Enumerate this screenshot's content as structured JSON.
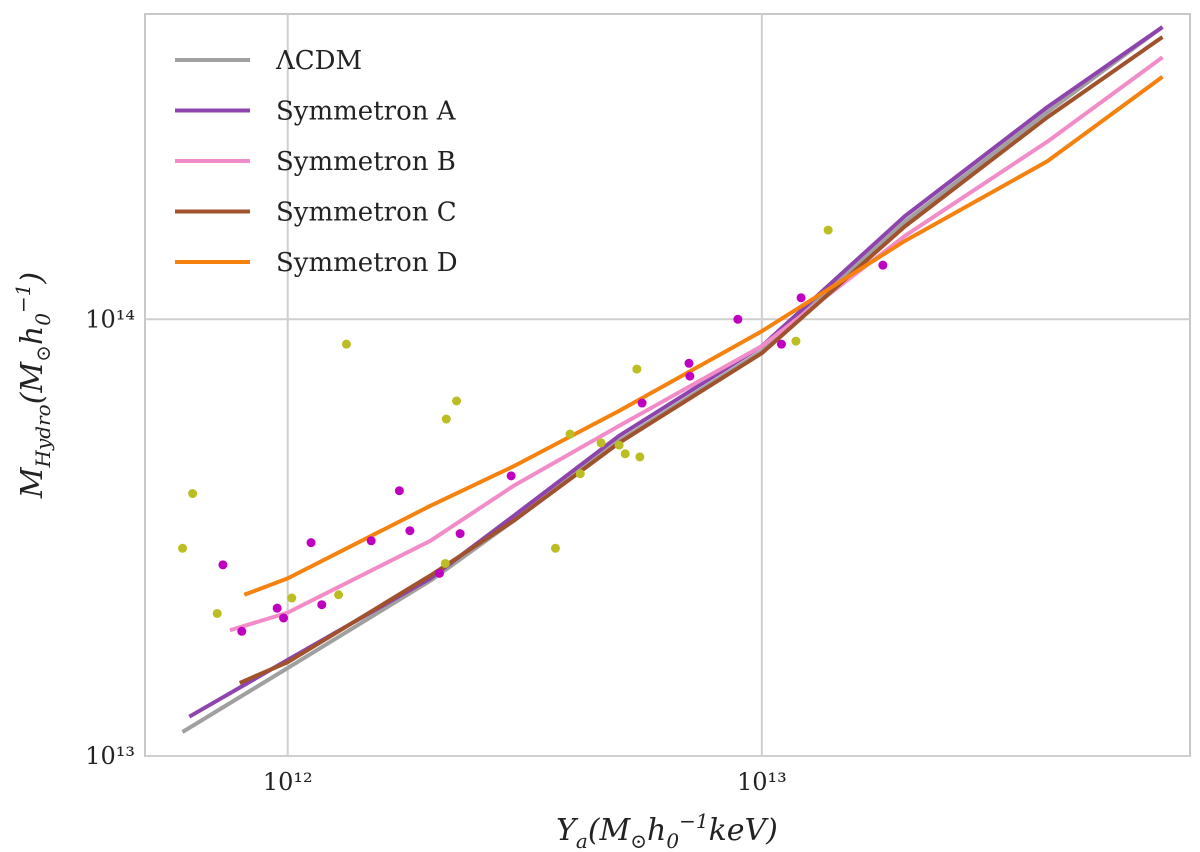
{
  "chart_data": {
    "type": "line",
    "xlabel": [
      {
        "text": "Y"
      },
      {
        "text": "a",
        "shift": "sub"
      },
      {
        "text": "(M"
      },
      {
        "text": "⊙",
        "shift": "sub"
      },
      {
        "text": "h"
      },
      {
        "text": "0",
        "shift": "sub"
      },
      {
        "text": "−1",
        "shift": "super"
      },
      {
        "text": "keV)"
      }
    ],
    "ylabel": [
      {
        "text": "M"
      },
      {
        "text": "Hydro",
        "shift": "sub"
      },
      {
        "text": "(M"
      },
      {
        "text": "⊙",
        "shift": "sub"
      },
      {
        "text": "h"
      },
      {
        "text": "0",
        "shift": "sub"
      },
      {
        "text": "−1",
        "shift": "super"
      },
      {
        "text": ")"
      }
    ],
    "xscale": "log",
    "yscale": "log",
    "xlim": [
      500000000000.0,
      80000000000000.0
    ],
    "ylim": [
      10000000000000.0,
      500000000000000.0
    ],
    "xticks": [
      {
        "value": 1000000000000.0,
        "label": "10¹²"
      },
      {
        "value": 10000000000000.0,
        "label": "10¹³"
      }
    ],
    "yticks": [
      {
        "value": 10000000000000.0,
        "label": "10¹³"
      },
      {
        "value": 100000000000000.0,
        "label": "10¹⁴"
      }
    ],
    "grid": true,
    "legend": "upper left",
    "series": [
      {
        "name": "ΛCDM",
        "color": "#a0a0a0",
        "x": [
          600000000000.0,
          1000000000000.0,
          2000000000000.0,
          3000000000000.0,
          5000000000000.0,
          10000000000000.0,
          20000000000000.0,
          40000000000000.0,
          70000000000000.0
        ],
        "values": [
          11350000000000.0,
          15900000000000.0,
          25200000000000.0,
          34600000000000.0,
          52700000000000.0,
          84500000000000.0,
          167000000000000.0,
          298000000000000.0,
          467000000000000.0
        ]
      },
      {
        "name": "Symmetron A",
        "color": "#8e44ad",
        "x": [
          620000000000.0,
          1000000000000.0,
          2000000000000.0,
          3000000000000.0,
          5000000000000.0,
          10000000000000.0,
          20000000000000.0,
          40000000000000.0,
          70000000000000.0
        ],
        "values": [
          12300000000000.0,
          16600000000000.0,
          25500000000000.0,
          35500000000000.0,
          54100000000000.0,
          86800000000000.0,
          172000000000000.0,
          306000000000000.0,
          467000000000000.0
        ]
      },
      {
        "name": "Symmetron B",
        "color": "#f28cc8",
        "x": [
          755000000000.0,
          1000000000000.0,
          2000000000000.0,
          3000000000000.0,
          5000000000000.0,
          10000000000000.0,
          20000000000000.0,
          40000000000000.0,
          70000000000000.0
        ],
        "values": [
          19400000000000.0,
          21300000000000.0,
          31100000000000.0,
          41600000000000.0,
          57000000000000.0,
          86800000000000.0,
          155000000000000.0,
          255000000000000.0,
          398000000000000.0
        ]
      },
      {
        "name": "Symmetron C",
        "color": "#a0522d",
        "x": [
          792000000000.0,
          1000000000000.0,
          2000000000000.0,
          3000000000000.0,
          5000000000000.0,
          10000000000000.0,
          20000000000000.0,
          40000000000000.0,
          70000000000000.0
        ],
        "values": [
          14700000000000.0,
          16400000000000.0,
          25900000000000.0,
          34600000000000.0,
          52100000000000.0,
          83600000000000.0,
          163000000000000.0,
          290000000000000.0,
          443000000000000.0
        ]
      },
      {
        "name": "Symmetron D",
        "color": "#f5820f",
        "x": [
          810000000000.0,
          1000000000000.0,
          2000000000000.0,
          3000000000000.0,
          5000000000000.0,
          10000000000000.0,
          20000000000000.0,
          40000000000000.0,
          70000000000000.0
        ],
        "values": [
          23400000000000.0,
          25500000000000.0,
          37400000000000.0,
          46100000000000.0,
          61700000000000.0,
          93900000000000.0,
          151000000000000.0,
          230000000000000.0,
          359000000000000.0
        ]
      }
    ],
    "points": [
      {
        "color": "#bcbd22",
        "x": [
          600000000000.0,
          630000000000.0,
          710000000000.0,
          1020000000000.0,
          1280000000000.0,
          1330000000000.0,
          2150000000000.0,
          2160000000000.0,
          2270000000000.0,
          3670000000000.0,
          3940000000000.0,
          4140000000000.0,
          4580000000000.0,
          5000000000000.0,
          5150000000000.0,
          5450000000000.0,
          5530000000000.0,
          11800000000000.0,
          13800000000000.0
        ],
        "values": [
          29900000000000.0,
          39900000000000.0,
          21200000000000.0,
          23000000000000.0,
          23400000000000.0,
          87700000000000.0,
          27600000000000.0,
          59100000000000.0,
          65000000000000.0,
          29900000000000.0,
          54600000000000.0,
          44300000000000.0,
          52100000000000.0,
          51500000000000.0,
          49200000000000.0,
          76900000000000.0,
          48400000000000.0,
          89100000000000.0,
          160000000000000.0
        ]
      },
      {
        "color": "#c000c0",
        "x": [
          730000000000.0,
          800000000000.0,
          950000000000.0,
          980000000000.0,
          1120000000000.0,
          1180000000000.0,
          1500000000000.0,
          1720000000000.0,
          1810000000000.0,
          2090000000000.0,
          2310000000000.0,
          2960000000000.0,
          5590000000000.0,
          7020000000000.0,
          7050000000000.0,
          8900000000000.0,
          11000000000000.0,
          12100000000000.0,
          18000000000000.0
        ],
        "values": [
          27400000000000.0,
          19300000000000.0,
          21800000000000.0,
          20700000000000.0,
          30800000000000.0,
          22200000000000.0,
          31100000000000.0,
          40500000000000.0,
          32800000000000.0,
          26200000000000.0,
          32300000000000.0,
          43800000000000.0,
          64300000000000.0,
          79300000000000.0,
          74100000000000.0,
          100000000000000.0,
          87700000000000.0,
          112000000000000.0,
          133000000000000.0
        ]
      }
    ]
  }
}
